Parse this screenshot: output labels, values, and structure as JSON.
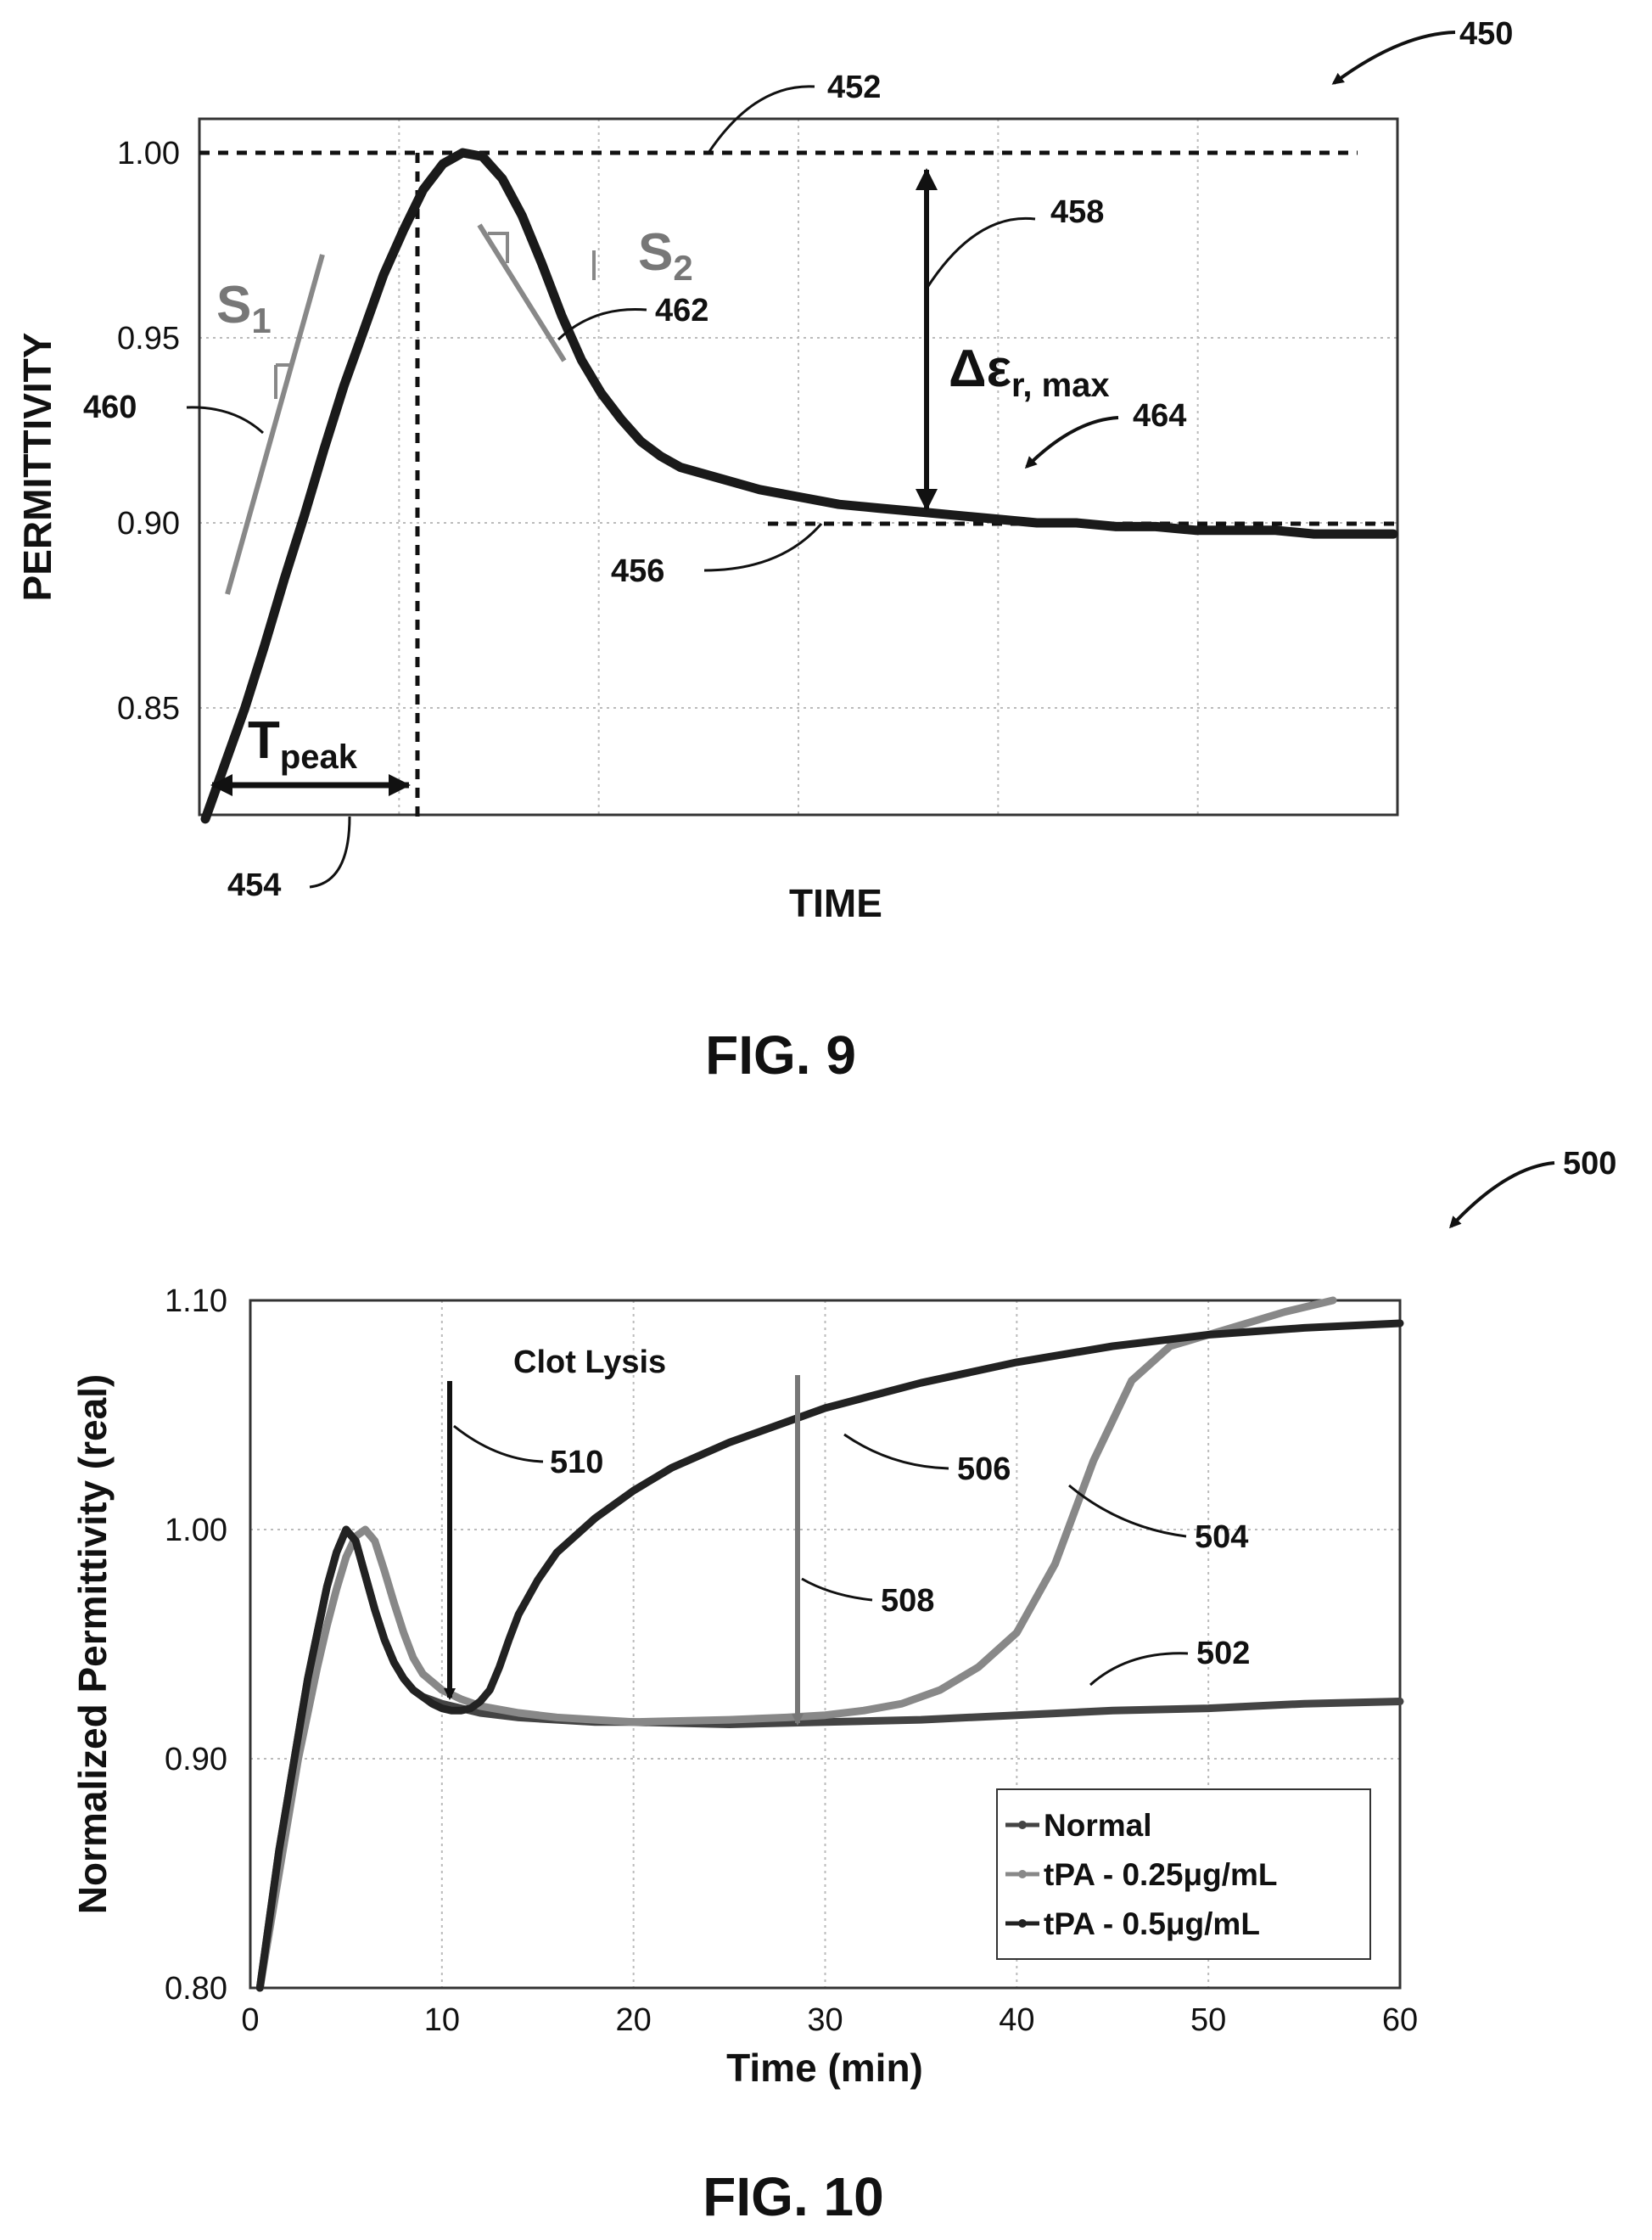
{
  "chart_data": [
    {
      "type": "line",
      "figure_label": "FIG. 9",
      "xlabel": "TIME",
      "ylabel": "PERMITTIVITY",
      "ylim": [
        0.82,
        1.005
      ],
      "xlim": [
        0,
        30
      ],
      "yticks": [
        "1.00",
        "0.95",
        "0.90",
        "0.85"
      ],
      "grid": true,
      "series": [
        {
          "x": [
            0,
            0.5,
            1,
            1.5,
            2,
            2.5,
            3,
            3.5,
            4,
            4.5,
            5,
            5.5,
            6,
            6.5,
            7,
            7.5,
            8,
            8.5,
            9,
            9.5,
            10,
            10.5,
            11,
            11.5,
            12,
            13,
            14,
            15,
            16,
            17,
            18,
            19,
            20,
            21,
            22,
            23,
            24,
            25,
            26,
            27,
            28,
            29,
            30
          ],
          "values": [
            0.82,
            0.835,
            0.85,
            0.867,
            0.885,
            0.902,
            0.92,
            0.937,
            0.952,
            0.967,
            0.979,
            0.99,
            0.997,
            1.0,
            0.999,
            0.993,
            0.983,
            0.97,
            0.956,
            0.944,
            0.935,
            0.928,
            0.922,
            0.918,
            0.915,
            0.912,
            0.909,
            0.907,
            0.905,
            0.904,
            0.903,
            0.902,
            0.901,
            0.9,
            0.9,
            0.899,
            0.899,
            0.898,
            0.898,
            0.898,
            0.897,
            0.897,
            0.897
          ]
        }
      ],
      "annotations": {
        "figure_ref": "450",
        "peak_line_ref": "452",
        "tpeak_ref": "454",
        "plateau_line_ref": "456",
        "delta_ref": "458",
        "slope1_ref": "460",
        "slope2_ref": "462",
        "curve_ref": "464",
        "s1_label": "S",
        "s1_sub": "1",
        "s2_label": "S",
        "s2_sub": "2",
        "tpeak_main": "T",
        "tpeak_sub": "peak",
        "delta_main": "Δε",
        "delta_sub": "r, max"
      }
    },
    {
      "type": "line",
      "figure_label": "FIG. 10",
      "xlabel": "Time (min)",
      "ylabel": "Normalized Permittivity (real)",
      "xlim": [
        0,
        60
      ],
      "ylim": [
        0.8,
        1.1
      ],
      "xticks": [
        "0",
        "10",
        "20",
        "30",
        "40",
        "50",
        "60"
      ],
      "yticks": [
        "1.10",
        "1.00",
        "0.90",
        "0.80"
      ],
      "grid": true,
      "legend_position": "bottom-right",
      "series": [
        {
          "name": "Normal",
          "color": "#444444",
          "x": [
            0.5,
            1,
            1.5,
            2,
            2.5,
            3,
            3.5,
            4,
            4.5,
            5,
            5.5,
            6,
            6.5,
            7,
            7.5,
            8,
            8.5,
            9,
            10,
            11,
            12,
            14,
            16,
            18,
            20,
            25,
            30,
            35,
            40,
            45,
            50,
            55,
            60
          ],
          "values": [
            0.8,
            0.83,
            0.86,
            0.885,
            0.91,
            0.935,
            0.955,
            0.975,
            0.99,
            1.0,
            0.995,
            0.98,
            0.965,
            0.952,
            0.942,
            0.935,
            0.93,
            0.927,
            0.924,
            0.922,
            0.92,
            0.918,
            0.917,
            0.916,
            0.916,
            0.915,
            0.916,
            0.917,
            0.919,
            0.921,
            0.922,
            0.924,
            0.925
          ]
        },
        {
          "name": "tPA - 0.25μg/mL",
          "color": "#888888",
          "x": [
            0.5,
            1,
            1.5,
            2,
            2.5,
            3,
            3.5,
            4,
            4.5,
            5,
            5.5,
            6,
            6.5,
            7,
            7.5,
            8,
            8.5,
            9,
            10,
            11,
            12,
            14,
            16,
            18,
            20,
            25,
            28,
            30,
            32,
            34,
            36,
            38,
            40,
            42,
            44,
            46,
            48,
            50,
            52,
            54,
            56.5
          ],
          "values": [
            0.8,
            0.825,
            0.85,
            0.875,
            0.9,
            0.92,
            0.94,
            0.958,
            0.974,
            0.988,
            0.997,
            1.0,
            0.995,
            0.982,
            0.968,
            0.955,
            0.944,
            0.937,
            0.93,
            0.926,
            0.923,
            0.92,
            0.918,
            0.917,
            0.916,
            0.917,
            0.918,
            0.919,
            0.921,
            0.924,
            0.93,
            0.94,
            0.955,
            0.985,
            1.03,
            1.065,
            1.08,
            1.085,
            1.09,
            1.095,
            1.1
          ]
        },
        {
          "name": "tPA - 0.5μg/mL",
          "color": "#222222",
          "x": [
            0.5,
            1,
            1.5,
            2,
            2.5,
            3,
            3.5,
            4,
            4.5,
            5,
            5.5,
            6,
            6.5,
            7,
            7.5,
            8,
            8.5,
            9,
            9.5,
            10,
            10.5,
            11,
            11.5,
            12,
            12.5,
            13,
            13.5,
            14,
            15,
            16,
            18,
            20,
            22,
            25,
            28,
            30,
            35,
            40,
            45,
            50,
            55,
            60
          ],
          "values": [
            0.8,
            0.83,
            0.86,
            0.885,
            0.91,
            0.935,
            0.955,
            0.975,
            0.99,
            1.0,
            0.995,
            0.98,
            0.965,
            0.952,
            0.942,
            0.935,
            0.93,
            0.927,
            0.924,
            0.922,
            0.921,
            0.921,
            0.922,
            0.925,
            0.93,
            0.94,
            0.952,
            0.963,
            0.978,
            0.99,
            1.005,
            1.017,
            1.027,
            1.038,
            1.047,
            1.053,
            1.064,
            1.073,
            1.08,
            1.085,
            1.088,
            1.09
          ]
        }
      ],
      "annotations": {
        "figure_ref": "500",
        "normal_ref": "502",
        "tpa025_ref": "504",
        "tpa05_ref": "506",
        "lysis025_ref": "508",
        "lysis05_ref": "510",
        "clot_lysis": "Clot Lysis"
      }
    }
  ]
}
